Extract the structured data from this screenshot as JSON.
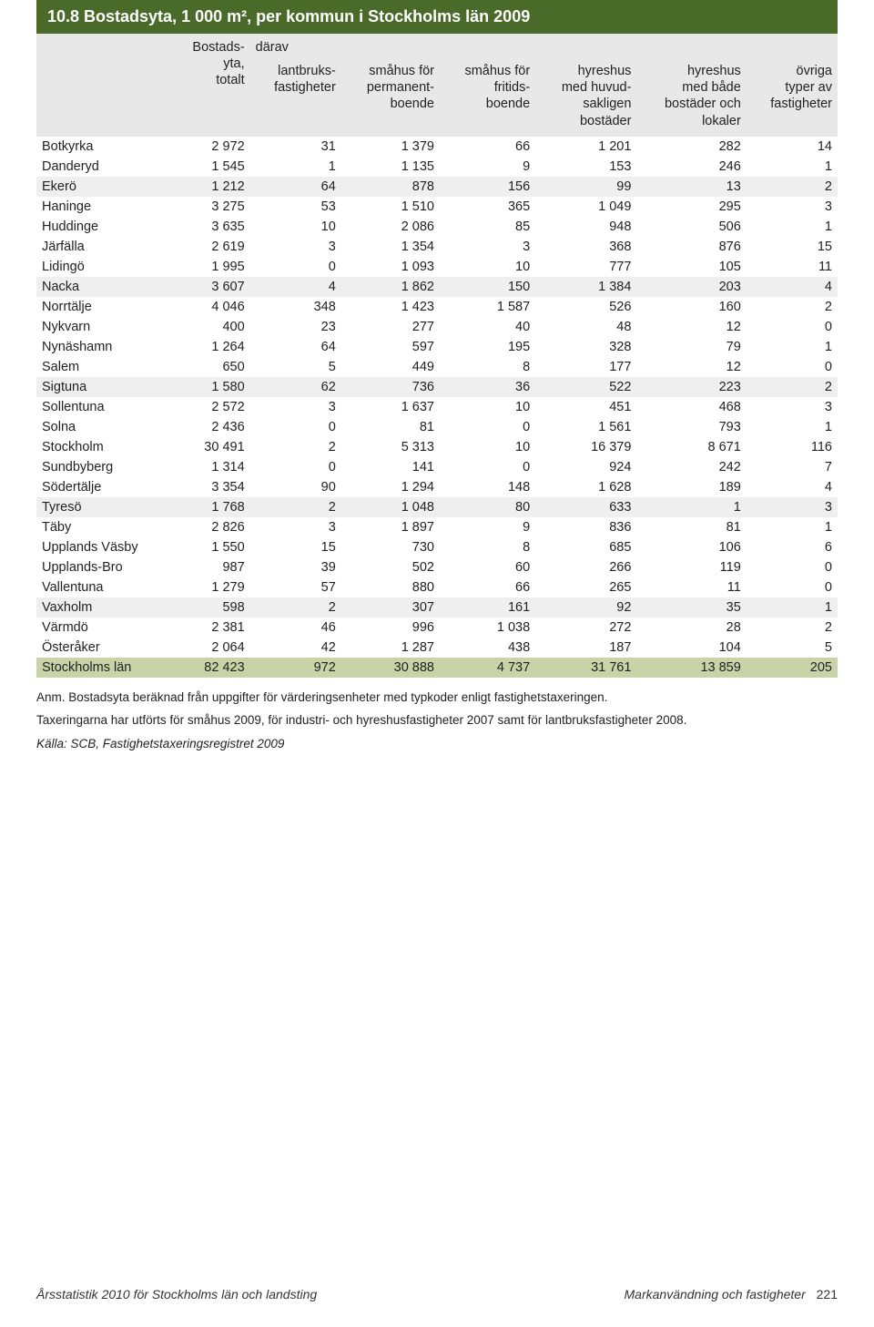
{
  "title": "10.8  Bostadsyta, 1 000 m², per kommun i Stockholms län 2009",
  "headers": {
    "col1": "Bostads-\nyta,\ntotalt",
    "darav": "därav",
    "col2": "lantbruks-\nfastigheter",
    "col3": "småhus för\npermanent-\nboende",
    "col4": "småhus för\nfritids-\nboende",
    "col5": "hyreshus\nmed huvud-\nsakligen\nbostäder",
    "col6": "hyreshus\nmed både\nbostäder och\nlokaler",
    "col7": "övriga\ntyper av\nfastigheter"
  },
  "groups": [
    [
      {
        "n": "Botkyrka",
        "v": [
          "2 972",
          "31",
          "1 379",
          "66",
          "1 201",
          "282",
          "14"
        ]
      },
      {
        "n": "Danderyd",
        "v": [
          "1 545",
          "1",
          "1 135",
          "9",
          "153",
          "246",
          "1"
        ]
      },
      {
        "n": "Ekerö",
        "v": [
          "1 212",
          "64",
          "878",
          "156",
          "99",
          "13",
          "2"
        ],
        "shade": true
      },
      {
        "n": "Haninge",
        "v": [
          "3 275",
          "53",
          "1 510",
          "365",
          "1 049",
          "295",
          "3"
        ]
      },
      {
        "n": "Huddinge",
        "v": [
          "3 635",
          "10",
          "2 086",
          "85",
          "948",
          "506",
          "1"
        ]
      }
    ],
    [
      {
        "n": "Järfälla",
        "v": [
          "2 619",
          "3",
          "1 354",
          "3",
          "368",
          "876",
          "15"
        ]
      },
      {
        "n": "Lidingö",
        "v": [
          "1 995",
          "0",
          "1 093",
          "10",
          "777",
          "105",
          "11"
        ]
      },
      {
        "n": "Nacka",
        "v": [
          "3 607",
          "4",
          "1 862",
          "150",
          "1 384",
          "203",
          "4"
        ],
        "shade": true
      },
      {
        "n": "Norrtälje",
        "v": [
          "4 046",
          "348",
          "1 423",
          "1 587",
          "526",
          "160",
          "2"
        ]
      },
      {
        "n": "Nykvarn",
        "v": [
          "400",
          "23",
          "277",
          "40",
          "48",
          "12",
          "0"
        ]
      }
    ],
    [
      {
        "n": "Nynäshamn",
        "v": [
          "1 264",
          "64",
          "597",
          "195",
          "328",
          "79",
          "1"
        ]
      },
      {
        "n": "Salem",
        "v": [
          "650",
          "5",
          "449",
          "8",
          "177",
          "12",
          "0"
        ]
      },
      {
        "n": "Sigtuna",
        "v": [
          "1 580",
          "62",
          "736",
          "36",
          "522",
          "223",
          "2"
        ],
        "shade": true
      },
      {
        "n": "Sollentuna",
        "v": [
          "2 572",
          "3",
          "1 637",
          "10",
          "451",
          "468",
          "3"
        ]
      },
      {
        "n": "Solna",
        "v": [
          "2 436",
          "0",
          "81",
          "0",
          "1 561",
          "793",
          "1"
        ]
      }
    ],
    [
      {
        "n": "Stockholm",
        "v": [
          "30 491",
          "2",
          "5 313",
          "10",
          "16 379",
          "8 671",
          "116"
        ]
      }
    ],
    [
      {
        "n": "Sundbyberg",
        "v": [
          "1 314",
          "0",
          "141",
          "0",
          "924",
          "242",
          "7"
        ]
      },
      {
        "n": "Södertälje",
        "v": [
          "3 354",
          "90",
          "1 294",
          "148",
          "1 628",
          "189",
          "4"
        ]
      },
      {
        "n": "Tyresö",
        "v": [
          "1 768",
          "2",
          "1 048",
          "80",
          "633",
          "1",
          "3"
        ],
        "shade": true
      },
      {
        "n": "Täby",
        "v": [
          "2 826",
          "3",
          "1 897",
          "9",
          "836",
          "81",
          "1"
        ]
      },
      {
        "n": "Upplands Väsby",
        "v": [
          "1 550",
          "15",
          "730",
          "8",
          "685",
          "106",
          "6"
        ]
      }
    ],
    [
      {
        "n": "Upplands-Bro",
        "v": [
          "987",
          "39",
          "502",
          "60",
          "266",
          "119",
          "0"
        ]
      },
      {
        "n": "Vallentuna",
        "v": [
          "1 279",
          "57",
          "880",
          "66",
          "265",
          "11",
          "0"
        ]
      },
      {
        "n": "Vaxholm",
        "v": [
          "598",
          "2",
          "307",
          "161",
          "92",
          "35",
          "1"
        ],
        "shade": true
      },
      {
        "n": "Värmdö",
        "v": [
          "2 381",
          "46",
          "996",
          "1 038",
          "272",
          "28",
          "2"
        ]
      },
      {
        "n": "Österåker",
        "v": [
          "2 064",
          "42",
          "1 287",
          "438",
          "187",
          "104",
          "5"
        ]
      }
    ]
  ],
  "total": {
    "n": "Stockholms län",
    "v": [
      "82 423",
      "972",
      "30 888",
      "4 737",
      "31 761",
      "13 859",
      "205"
    ]
  },
  "notes": {
    "line1": "Anm. Bostadsyta beräknad från uppgifter för värderingsenheter med typkoder enligt fastighetstaxeringen.",
    "line2": "Taxeringarna har utförts för småhus 2009, för industri- och hyreshusfastigheter 2007 samt för lantbruksfastigheter 2008.",
    "source": "Källa: SCB, Fastighetstaxeringsregistret 2009"
  },
  "footer": {
    "left": "Årsstatistik 2010 för Stockholms län och landsting",
    "right_label": "Markanvändning och fastigheter",
    "page": "221"
  },
  "style": {
    "title_bg": "#4a6a2a",
    "title_color": "#ffffff",
    "header_bg": "#e8e8e8",
    "shade_bg": "#efefef",
    "total_bg": "#c8d3a8",
    "text_color": "#222222",
    "font_family": "Arial, Helvetica, sans-serif"
  }
}
